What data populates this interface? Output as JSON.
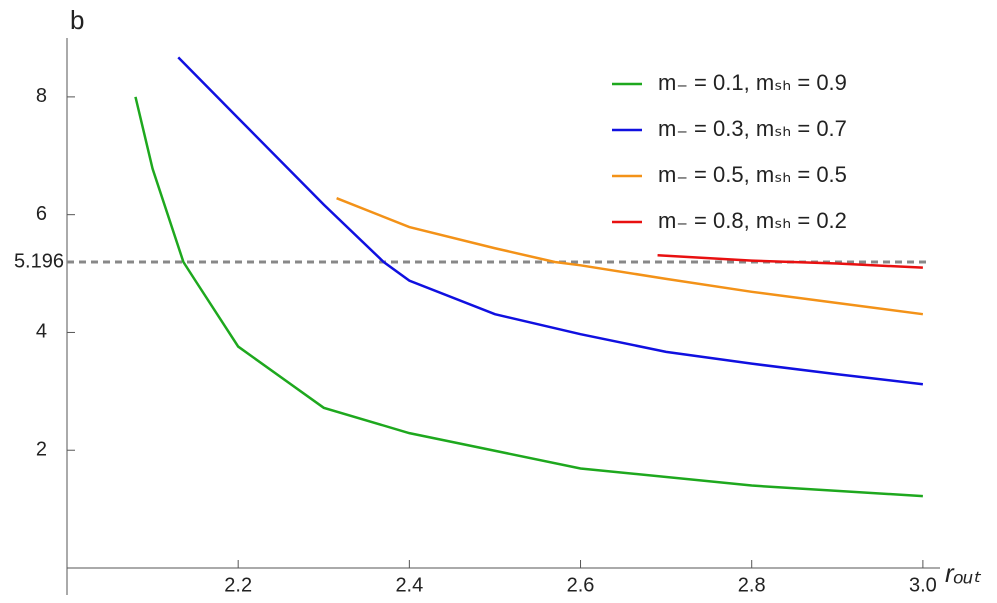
{
  "chart_data": {
    "type": "line",
    "ylabel": "b",
    "xlabel": "rₒᵤₜ",
    "xlim": [
      2.0,
      3.02
    ],
    "ylim": [
      0,
      9
    ],
    "xticks": [
      2.2,
      2.4,
      2.6,
      2.8,
      {
        "value": 3.0,
        "label": "3.0"
      }
    ],
    "yticks": [
      2,
      4,
      6,
      8
    ],
    "reference_line": {
      "value": 5.196,
      "color": "#888888"
    },
    "legend": "upper right",
    "series": [
      {
        "name": "m₋ = 0.1, mₛₕ = 0.9",
        "color": "#1ea81e",
        "x": [
          2.08,
          2.1,
          2.136,
          2.15,
          2.2,
          2.3,
          2.4,
          2.6,
          2.8,
          3.0
        ],
        "values": [
          8.0,
          6.78,
          5.196,
          4.88,
          3.76,
          2.72,
          2.29,
          1.69,
          1.4,
          1.22
        ]
      },
      {
        "name": "m₋ = 0.3, mₛₕ = 0.7",
        "color": "#1010e0",
        "x": [
          2.13,
          2.2,
          2.3,
          2.37,
          2.4,
          2.5,
          2.6,
          2.7,
          2.8,
          2.9,
          3.0
        ],
        "values": [
          8.67,
          7.64,
          6.17,
          5.196,
          4.88,
          4.31,
          3.97,
          3.67,
          3.47,
          3.29,
          3.12
        ]
      },
      {
        "name": "m₋ = 0.5, mₛₕ = 0.5",
        "color": "#f39218",
        "x": [
          2.315,
          2.4,
          2.5,
          2.57,
          2.6,
          2.7,
          2.8,
          2.9,
          3.0
        ],
        "values": [
          6.28,
          5.79,
          5.43,
          5.196,
          5.14,
          4.91,
          4.69,
          4.5,
          4.31
        ]
      },
      {
        "name": "m₋ = 0.8, mₛₕ = 0.2",
        "color": "#e81010",
        "x": [
          2.69,
          2.8,
          2.9,
          3.0
        ],
        "values": [
          5.31,
          5.22,
          5.17,
          5.1
        ]
      }
    ]
  }
}
